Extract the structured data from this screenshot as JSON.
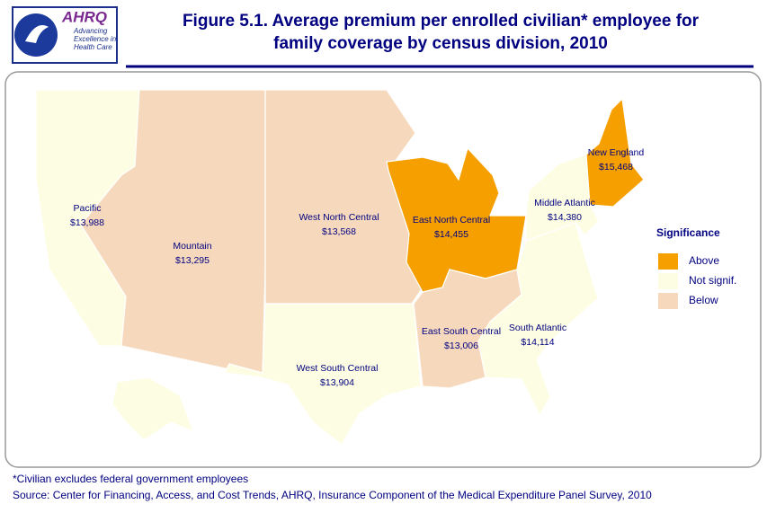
{
  "header": {
    "title_lines": [
      "Figure 5.1. Average premium per enrolled civilian* employee for",
      "family coverage by census division, 2010"
    ],
    "logo": {
      "name": "AHRQ",
      "tagline": [
        "Advancing",
        "Excellence in",
        "Health Care"
      ]
    }
  },
  "map": {
    "regions": [
      {
        "name": "Pacific",
        "value": "$13,988",
        "color": "#fdfde3"
      },
      {
        "name": "Mountain",
        "value": "$13,295",
        "color": "#f6d9bd"
      },
      {
        "name": "West North Central",
        "value": "$13,568",
        "color": "#f6d9bd"
      },
      {
        "name": "West South Central",
        "value": "$13,904",
        "color": "#fdfde3"
      },
      {
        "name": "East North Central",
        "value": "$14,455",
        "color": "#f5a000"
      },
      {
        "name": "East South Central",
        "value": "$13,006",
        "color": "#f6d9bd"
      },
      {
        "name": "South Atlantic",
        "value": "$14,114",
        "color": "#fdfde3"
      },
      {
        "name": "Middle Atlantic",
        "value": "$14,380",
        "color": "#fdfde3"
      },
      {
        "name": "New England",
        "value": "$15,468",
        "color": "#f5a000"
      }
    ]
  },
  "legend": {
    "title": "Significance",
    "items": [
      {
        "label": "Above",
        "color": "#f5a000"
      },
      {
        "label": "Not signif.",
        "color": "#fdfde3"
      },
      {
        "label": "Below",
        "color": "#f6d9bd"
      }
    ]
  },
  "notes": [
    "*Civilian excludes federal government employees",
    "Source: Center for Financing, Access, and Cost Trends, AHRQ, Insurance Component of the Medical Expenditure Panel Survey, 2010"
  ]
}
